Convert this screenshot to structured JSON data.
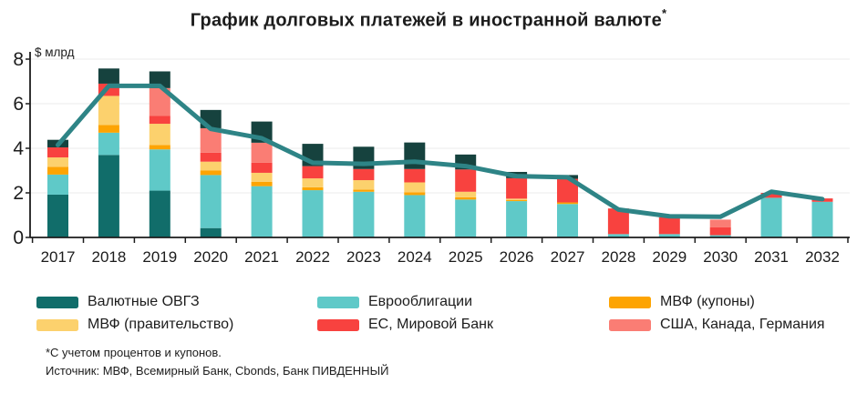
{
  "header": {
    "title": "График долговых платежей в иностранной валюте",
    "footnote_marker": "*"
  },
  "chart_data": {
    "type": "bar",
    "subtype": "stacked-bars-with-line-overlay",
    "title": "График долговых платежей в иностранной валюте*",
    "ylabel": "$ млрд",
    "xlabel": "",
    "ylim": [
      0,
      8
    ],
    "yticks": [
      0,
      2,
      4,
      6,
      8
    ],
    "grid": "horizontal",
    "legend_position": "bottom",
    "categories": [
      "2017",
      "2018",
      "2019",
      "2020",
      "2021",
      "2022",
      "2023",
      "2024",
      "2025",
      "2026",
      "2027",
      "2028",
      "2029",
      "2030",
      "2031",
      "2032"
    ],
    "series": [
      {
        "name": "Валютные ОВГЗ",
        "color": "#116d6a",
        "values": [
          1.92,
          3.7,
          2.1,
          0.42,
          0,
          0,
          0,
          0,
          0,
          0,
          0,
          0,
          0,
          0,
          0,
          0
        ]
      },
      {
        "name": "Еврооблигации",
        "color": "#5fc9c8",
        "values": [
          0.9,
          1.0,
          1.85,
          2.38,
          2.3,
          2.12,
          2.05,
          1.9,
          1.7,
          1.63,
          1.5,
          0.15,
          0.15,
          0.1,
          1.78,
          1.6
        ]
      },
      {
        "name": "МВФ (купоны)",
        "color": "#fda402",
        "values": [
          0.35,
          0.35,
          0.2,
          0.2,
          0.2,
          0.13,
          0.1,
          0.13,
          0.1,
          0.05,
          0.07,
          0,
          0,
          0,
          0,
          0
        ]
      },
      {
        "name": "МВФ (правительство)",
        "color": "#fcd16d",
        "values": [
          0.42,
          1.3,
          0.95,
          0.4,
          0.4,
          0.4,
          0.42,
          0.44,
          0.25,
          0.06,
          0,
          0,
          0,
          0,
          0,
          0
        ]
      },
      {
        "name": "ЕС, Мировой Банк",
        "color": "#f8423f",
        "values": [
          0.45,
          0.55,
          0.35,
          0.4,
          0.45,
          0.55,
          0.5,
          0.6,
          1.0,
          0.92,
          1.06,
          1.15,
          0.75,
          0.35,
          0.22,
          0.15
        ]
      },
      {
        "name": "США, Канада, Германия",
        "color": "#fa7d74",
        "values": [
          0,
          0,
          1.25,
          1.1,
          0.9,
          0,
          0,
          0,
          0,
          0,
          0,
          0,
          0,
          0.35,
          0,
          0
        ]
      },
      {
        "name": "unlabeled-dark-top-segment",
        "color": "#16423e",
        "in_legend": false,
        "values": [
          0.34,
          0.68,
          0.75,
          0.82,
          0.95,
          1.0,
          1.0,
          1.19,
          0.67,
          0.28,
          0.17,
          0,
          0,
          0,
          0,
          0
        ]
      }
    ],
    "line": {
      "color": "#2e8486",
      "values": [
        4.15,
        6.8,
        6.8,
        4.87,
        4.45,
        3.35,
        3.3,
        3.4,
        3.2,
        2.75,
        2.7,
        1.25,
        0.95,
        0.93,
        2.05,
        1.72
      ]
    }
  },
  "legend": {
    "items": [
      {
        "label": "Валютные ОВГЗ",
        "color": "#116d6a"
      },
      {
        "label": "Еврооблигации",
        "color": "#5fc9c8"
      },
      {
        "label": "МВФ (купоны)",
        "color": "#fda402"
      },
      {
        "label": "МВФ (правительство)",
        "color": "#fcd16d"
      },
      {
        "label": "ЕС, Мировой Банк",
        "color": "#f8423f"
      },
      {
        "label": "США, Канада, Германия",
        "color": "#fa7d74"
      }
    ]
  },
  "footnotes": {
    "note": "*С учетом процентов и купонов.",
    "source": "Источник: МВФ, Всемирный Банк, Cbonds, Банк ПИВДЕННЫЙ"
  },
  "colors": {
    "axis": "#1c1c1c",
    "gridline": "#ebebeb",
    "line_overlay": "#2e8486"
  }
}
